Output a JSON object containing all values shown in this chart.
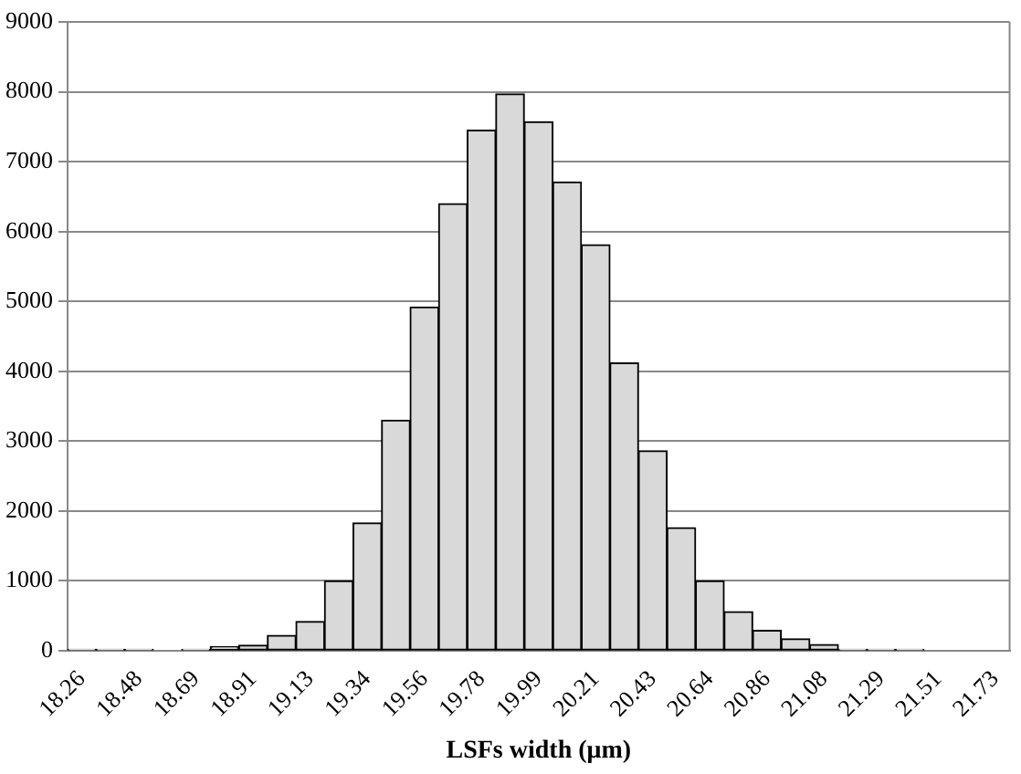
{
  "chart_data": {
    "type": "bar",
    "xlabel": "LSFs width (μm)",
    "categories": [
      "18.26",
      null,
      "18.48",
      null,
      "18.69",
      null,
      "18.91",
      null,
      "19.13",
      null,
      "19.34",
      null,
      "19.56",
      null,
      "19.78",
      null,
      "19.99",
      null,
      "20.21",
      null,
      "20.43",
      null,
      "20.64",
      null,
      "20.86",
      null,
      "21.08",
      null,
      "21.29",
      null,
      "21.51",
      null,
      "21.73"
    ],
    "values": [
      20,
      20,
      20,
      0,
      20,
      60,
      80,
      220,
      420,
      1000,
      1830,
      3300,
      4920,
      6400,
      7450,
      7970,
      7570,
      6710,
      5810,
      4120,
      2860,
      1760,
      1000,
      560,
      290,
      170,
      90,
      20,
      20,
      20,
      0,
      0,
      0
    ],
    "color": "#d9d9d9",
    "ylim": [
      0,
      9000
    ],
    "yticks": [
      0,
      1000,
      2000,
      3000,
      4000,
      5000,
      6000,
      7000,
      8000,
      9000
    ],
    "grid": "y"
  }
}
